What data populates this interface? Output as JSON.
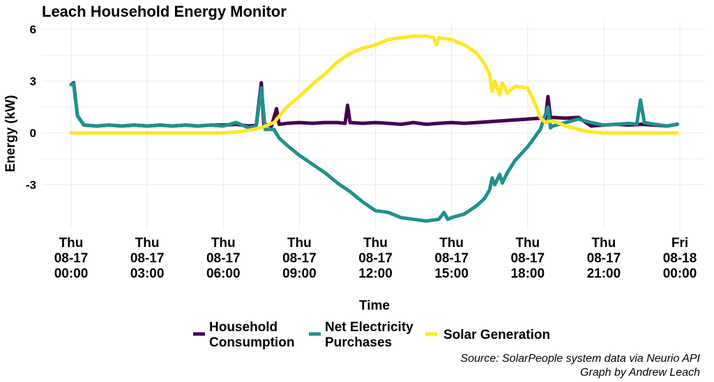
{
  "chart_data": {
    "type": "line",
    "title": "Leach Household Energy Monitor",
    "xlabel": "Time",
    "ylabel": "Energy (kW)",
    "ylim": [
      -5.3,
      6.2
    ],
    "xlim": [
      0,
      24
    ],
    "grid": true,
    "legend_position": "bottom",
    "yticks": [
      {
        "value": 6,
        "label": "6"
      },
      {
        "value": 3,
        "label": "3"
      },
      {
        "value": 0,
        "label": "0"
      },
      {
        "value": -3,
        "label": "-3"
      }
    ],
    "xticks": [
      {
        "hour": 0,
        "lines": [
          "Thu",
          "08-17",
          "00:00"
        ]
      },
      {
        "hour": 3,
        "lines": [
          "Thu",
          "08-17",
          "03:00"
        ]
      },
      {
        "hour": 6,
        "lines": [
          "Thu",
          "08-17",
          "06:00"
        ]
      },
      {
        "hour": 9,
        "lines": [
          "Thu",
          "08-17",
          "09:00"
        ]
      },
      {
        "hour": 12,
        "lines": [
          "Thu",
          "08-17",
          "12:00"
        ]
      },
      {
        "hour": 15,
        "lines": [
          "Thu",
          "08-17",
          "15:00"
        ]
      },
      {
        "hour": 18,
        "lines": [
          "Thu",
          "08-17",
          "18:00"
        ]
      },
      {
        "hour": 21,
        "lines": [
          "Thu",
          "08-17",
          "21:00"
        ]
      },
      {
        "hour": 24,
        "lines": [
          "Fri",
          "08-18",
          "00:00"
        ]
      }
    ],
    "series": [
      {
        "name": "Household Consumption",
        "legend_lines": [
          "Household",
          "Consumption"
        ],
        "color": "#440154",
        "points": [
          [
            0,
            2.8
          ],
          [
            0.1,
            2.9
          ],
          [
            0.25,
            1.0
          ],
          [
            0.5,
            0.45
          ],
          [
            1,
            0.4
          ],
          [
            1.5,
            0.45
          ],
          [
            2,
            0.4
          ],
          [
            2.5,
            0.45
          ],
          [
            3,
            0.4
          ],
          [
            3.5,
            0.45
          ],
          [
            4,
            0.4
          ],
          [
            4.5,
            0.45
          ],
          [
            5,
            0.4
          ],
          [
            5.5,
            0.45
          ],
          [
            6,
            0.45
          ],
          [
            6.5,
            0.5
          ],
          [
            7,
            0.4
          ],
          [
            7.3,
            0.45
          ],
          [
            7.5,
            2.9
          ],
          [
            7.6,
            0.5
          ],
          [
            7.9,
            0.4
          ],
          [
            8.1,
            1.4
          ],
          [
            8.2,
            0.5
          ],
          [
            8.5,
            0.55
          ],
          [
            9,
            0.6
          ],
          [
            9.5,
            0.55
          ],
          [
            10,
            0.6
          ],
          [
            10.5,
            0.6
          ],
          [
            10.8,
            0.55
          ],
          [
            10.9,
            1.6
          ],
          [
            11,
            0.6
          ],
          [
            11.5,
            0.55
          ],
          [
            12,
            0.6
          ],
          [
            12.5,
            0.55
          ],
          [
            13,
            0.5
          ],
          [
            13.5,
            0.6
          ],
          [
            14,
            0.5
          ],
          [
            14.5,
            0.55
          ],
          [
            15,
            0.6
          ],
          [
            15.5,
            0.55
          ],
          [
            16,
            0.6
          ],
          [
            16.5,
            0.65
          ],
          [
            17,
            0.7
          ],
          [
            17.5,
            0.75
          ],
          [
            18,
            0.8
          ],
          [
            18.5,
            0.85
          ],
          [
            18.7,
            0.8
          ],
          [
            18.8,
            2.1
          ],
          [
            18.9,
            0.85
          ],
          [
            19,
            0.9
          ],
          [
            19.5,
            0.85
          ],
          [
            20,
            0.9
          ],
          [
            20.5,
            0.4
          ],
          [
            21,
            0.45
          ],
          [
            21.5,
            0.5
          ],
          [
            22,
            0.45
          ],
          [
            22.5,
            0.5
          ],
          [
            23,
            0.45
          ],
          [
            23.5,
            0.4
          ],
          [
            23.9,
            0.5
          ]
        ]
      },
      {
        "name": "Net Electricity Purchases",
        "legend_lines": [
          "Net Electricity",
          "Purchases"
        ],
        "color": "#21908c",
        "points": [
          [
            0,
            2.8
          ],
          [
            0.1,
            2.85
          ],
          [
            0.25,
            1.0
          ],
          [
            0.5,
            0.45
          ],
          [
            1,
            0.4
          ],
          [
            1.5,
            0.45
          ],
          [
            2,
            0.4
          ],
          [
            2.5,
            0.45
          ],
          [
            3,
            0.4
          ],
          [
            3.5,
            0.45
          ],
          [
            4,
            0.4
          ],
          [
            4.5,
            0.45
          ],
          [
            5,
            0.4
          ],
          [
            5.5,
            0.45
          ],
          [
            6,
            0.4
          ],
          [
            6.5,
            0.6
          ],
          [
            7,
            0.3
          ],
          [
            7.3,
            0.4
          ],
          [
            7.5,
            2.6
          ],
          [
            7.65,
            0.2
          ],
          [
            8,
            0.2
          ],
          [
            8.2,
            -0.3
          ],
          [
            8.5,
            -0.7
          ],
          [
            9,
            -1.3
          ],
          [
            9.5,
            -1.8
          ],
          [
            10,
            -2.3
          ],
          [
            10.5,
            -2.9
          ],
          [
            11,
            -3.4
          ],
          [
            11.5,
            -4.0
          ],
          [
            12,
            -4.5
          ],
          [
            12.5,
            -4.6
          ],
          [
            13,
            -4.9
          ],
          [
            13.5,
            -5.0
          ],
          [
            14,
            -5.1
          ],
          [
            14.5,
            -5.0
          ],
          [
            14.7,
            -4.6
          ],
          [
            14.85,
            -5.0
          ],
          [
            15,
            -4.9
          ],
          [
            15.5,
            -4.7
          ],
          [
            16,
            -4.2
          ],
          [
            16.3,
            -3.8
          ],
          [
            16.5,
            -3.3
          ],
          [
            16.6,
            -2.6
          ],
          [
            16.7,
            -3.0
          ],
          [
            16.9,
            -2.4
          ],
          [
            17,
            -2.9
          ],
          [
            17.2,
            -2.3
          ],
          [
            17.5,
            -1.6
          ],
          [
            18,
            -0.8
          ],
          [
            18.3,
            -0.2
          ],
          [
            18.5,
            0.2
          ],
          [
            18.8,
            1.5
          ],
          [
            18.9,
            0.3
          ],
          [
            19,
            0.4
          ],
          [
            19.5,
            0.6
          ],
          [
            20,
            0.8
          ],
          [
            20.5,
            0.6
          ],
          [
            21,
            0.45
          ],
          [
            21.5,
            0.5
          ],
          [
            22,
            0.55
          ],
          [
            22.3,
            0.5
          ],
          [
            22.45,
            1.9
          ],
          [
            22.6,
            0.6
          ],
          [
            23,
            0.5
          ],
          [
            23.5,
            0.4
          ],
          [
            23.9,
            0.5
          ]
        ]
      },
      {
        "name": "Solar Generation",
        "legend_lines": [
          "Solar Generation"
        ],
        "color": "#fde725",
        "points": [
          [
            0,
            0
          ],
          [
            1,
            0
          ],
          [
            2,
            0
          ],
          [
            3,
            0
          ],
          [
            4,
            0
          ],
          [
            5,
            0
          ],
          [
            6,
            0
          ],
          [
            6.5,
            0.05
          ],
          [
            7,
            0.15
          ],
          [
            7.5,
            0.3
          ],
          [
            8,
            0.6
          ],
          [
            8.5,
            1.5
          ],
          [
            9,
            2.1
          ],
          [
            9.5,
            2.8
          ],
          [
            10,
            3.4
          ],
          [
            10.5,
            4.1
          ],
          [
            11,
            4.6
          ],
          [
            11.5,
            4.9
          ],
          [
            12,
            5.1
          ],
          [
            12.5,
            5.4
          ],
          [
            13,
            5.5
          ],
          [
            13.5,
            5.6
          ],
          [
            14,
            5.6
          ],
          [
            14.3,
            5.5
          ],
          [
            14.4,
            5.1
          ],
          [
            14.5,
            5.5
          ],
          [
            15,
            5.4
          ],
          [
            15.5,
            5.1
          ],
          [
            16,
            4.6
          ],
          [
            16.3,
            4.0
          ],
          [
            16.5,
            3.4
          ],
          [
            16.6,
            2.4
          ],
          [
            16.7,
            3.0
          ],
          [
            16.9,
            2.2
          ],
          [
            17,
            2.9
          ],
          [
            17.2,
            2.3
          ],
          [
            17.5,
            2.7
          ],
          [
            18,
            2.6
          ],
          [
            18.2,
            2.0
          ],
          [
            18.4,
            1.3
          ],
          [
            18.5,
            0.9
          ],
          [
            18.7,
            0.6
          ],
          [
            19,
            0.7
          ],
          [
            19.5,
            0.4
          ],
          [
            20,
            0.2
          ],
          [
            20.5,
            0.05
          ],
          [
            21,
            0
          ],
          [
            22,
            0
          ],
          [
            23,
            0
          ],
          [
            23.9,
            0
          ]
        ]
      }
    ]
  },
  "caption": {
    "line1": "Source: SolarPeople system data via Neurio API",
    "line2": "Graph by Andrew Leach"
  }
}
